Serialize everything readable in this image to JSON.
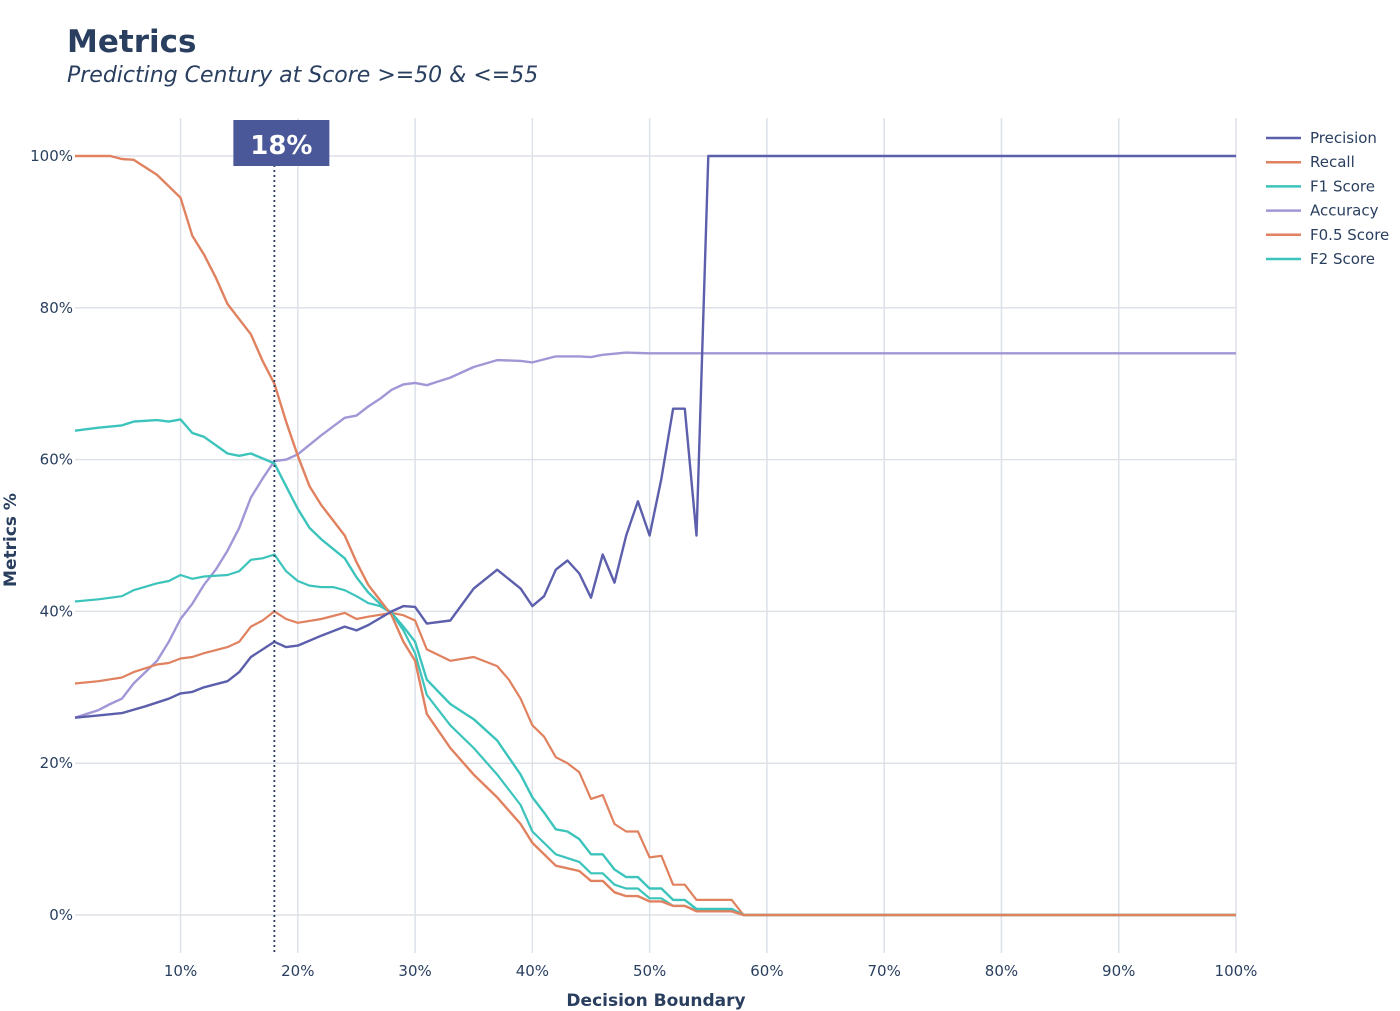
{
  "chart_data": {
    "type": "line",
    "title": "Metrics",
    "subtitle": "Predicting Century at Score >=50 & <=55",
    "xlabel": "Decision Boundary",
    "ylabel": "Metrics %",
    "xlim": [
      1,
      100
    ],
    "ylim": [
      -5,
      105
    ],
    "x_ticks": [
      10,
      20,
      30,
      40,
      50,
      60,
      70,
      80,
      90,
      100
    ],
    "x_tick_labels": [
      "10%",
      "20%",
      "30%",
      "40%",
      "50%",
      "60%",
      "70%",
      "80%",
      "90%",
      "100%"
    ],
    "y_ticks": [
      0,
      20,
      40,
      60,
      80,
      100
    ],
    "y_tick_labels": [
      "0%",
      "20%",
      "40%",
      "60%",
      "80%",
      "100%"
    ],
    "grid": true,
    "legend_position": "top-right",
    "annotation": {
      "x": 18,
      "label": "18%"
    },
    "colors": {
      "Precision": "#5c5fab",
      "Recall": "#e0815f",
      "F1 Score": "#3cc4bc",
      "Accuracy": "#a197d6",
      "F0.5 Score": "#e0815f",
      "F2 Score": "#3cc4bc",
      "annotation_bg": "#4a5899",
      "annotation_line": "#2a3f5f",
      "grid": "#dde1e8"
    },
    "series": [
      {
        "name": "Precision",
        "points": [
          [
            1,
            26
          ],
          [
            3,
            26.3
          ],
          [
            5,
            26.6
          ],
          [
            7,
            27.5
          ],
          [
            9,
            28.5
          ],
          [
            10,
            29.2
          ],
          [
            11,
            29.4
          ],
          [
            12,
            30
          ],
          [
            14,
            30.8
          ],
          [
            15,
            32
          ],
          [
            16,
            34
          ],
          [
            18,
            36
          ],
          [
            19,
            35.3
          ],
          [
            20,
            35.5
          ],
          [
            22,
            36.8
          ],
          [
            24,
            38
          ],
          [
            25,
            37.5
          ],
          [
            26,
            38.2
          ],
          [
            28,
            40
          ],
          [
            29,
            40.7
          ],
          [
            30,
            40.6
          ],
          [
            31,
            38.4
          ],
          [
            33,
            38.8
          ],
          [
            35,
            43
          ],
          [
            37,
            45.5
          ],
          [
            39,
            43
          ],
          [
            40,
            40.7
          ],
          [
            41,
            42
          ],
          [
            42,
            45.5
          ],
          [
            43,
            46.7
          ],
          [
            44,
            45
          ],
          [
            45,
            41.8
          ],
          [
            46,
            47.5
          ],
          [
            47,
            43.8
          ],
          [
            48,
            50
          ],
          [
            49,
            54.5
          ],
          [
            50,
            50
          ],
          [
            51,
            57.5
          ],
          [
            52,
            66.7
          ],
          [
            53,
            66.7
          ],
          [
            54,
            50
          ],
          [
            55,
            100
          ],
          [
            100,
            100
          ]
        ]
      },
      {
        "name": "Recall",
        "points": [
          [
            1,
            100
          ],
          [
            4,
            100
          ],
          [
            5,
            99.6
          ],
          [
            6,
            99.5
          ],
          [
            8,
            97.5
          ],
          [
            9,
            96
          ],
          [
            10,
            94.5
          ],
          [
            11,
            89.5
          ],
          [
            12,
            87
          ],
          [
            13,
            84
          ],
          [
            14,
            80.5
          ],
          [
            16,
            76.5
          ],
          [
            17,
            73
          ],
          [
            18,
            70
          ],
          [
            19,
            65
          ],
          [
            20,
            60.5
          ],
          [
            21,
            56.5
          ],
          [
            22,
            54
          ],
          [
            24,
            50
          ],
          [
            25,
            46.5
          ],
          [
            26,
            43.5
          ],
          [
            27,
            41.5
          ],
          [
            28,
            39.5
          ],
          [
            29,
            36
          ],
          [
            30,
            33.5
          ],
          [
            31,
            26.5
          ],
          [
            33,
            22
          ],
          [
            35,
            18.5
          ],
          [
            37,
            15.5
          ],
          [
            39,
            12
          ],
          [
            40,
            9.5
          ],
          [
            42,
            6.5
          ],
          [
            44,
            5.8
          ],
          [
            45,
            4.5
          ],
          [
            46,
            4.5
          ],
          [
            47,
            3
          ],
          [
            48,
            2.5
          ],
          [
            49,
            2.5
          ],
          [
            50,
            1.8
          ],
          [
            51,
            1.8
          ],
          [
            52,
            1.2
          ],
          [
            53,
            1.2
          ],
          [
            54,
            0.5
          ],
          [
            57,
            0.5
          ],
          [
            58,
            0
          ],
          [
            100,
            0
          ]
        ]
      },
      {
        "name": "F1 Score",
        "points": [
          [
            1,
            63.8
          ],
          [
            3,
            64.2
          ],
          [
            5,
            64.5
          ],
          [
            6,
            65
          ],
          [
            8,
            65.2
          ],
          [
            9,
            65
          ],
          [
            10,
            65.3
          ],
          [
            11,
            63.5
          ],
          [
            12,
            63
          ],
          [
            14,
            60.8
          ],
          [
            15,
            60.5
          ],
          [
            16,
            60.8
          ],
          [
            18,
            59.5
          ],
          [
            19,
            56.5
          ],
          [
            20,
            53.5
          ],
          [
            21,
            51
          ],
          [
            22,
            49.5
          ],
          [
            24,
            47
          ],
          [
            25,
            44.5
          ],
          [
            26,
            42.5
          ],
          [
            27,
            41
          ],
          [
            28,
            39.8
          ],
          [
            29,
            38
          ],
          [
            30,
            36
          ],
          [
            31,
            31
          ],
          [
            33,
            27.8
          ],
          [
            35,
            25.8
          ],
          [
            37,
            23
          ],
          [
            39,
            18.5
          ],
          [
            40,
            15.5
          ],
          [
            41,
            13.5
          ],
          [
            42,
            11.3
          ],
          [
            43,
            11
          ],
          [
            44,
            10
          ],
          [
            45,
            8
          ],
          [
            46,
            8
          ],
          [
            47,
            6
          ],
          [
            48,
            5
          ],
          [
            49,
            5
          ],
          [
            50,
            3.5
          ],
          [
            51,
            3.5
          ],
          [
            52,
            2
          ],
          [
            53,
            2
          ],
          [
            54,
            0.8
          ],
          [
            57,
            0.8
          ],
          [
            58,
            0
          ],
          [
            100,
            0
          ]
        ]
      },
      {
        "name": "Accuracy",
        "points": [
          [
            1,
            26
          ],
          [
            3,
            27
          ],
          [
            4,
            27.8
          ],
          [
            5,
            28.5
          ],
          [
            6,
            30.5
          ],
          [
            8,
            33.5
          ],
          [
            9,
            36
          ],
          [
            10,
            39
          ],
          [
            11,
            41
          ],
          [
            12,
            43.5
          ],
          [
            13,
            45.5
          ],
          [
            14,
            48
          ],
          [
            15,
            51
          ],
          [
            16,
            55
          ],
          [
            17,
            57.5
          ],
          [
            18,
            59.8
          ],
          [
            19,
            60
          ],
          [
            20,
            60.7
          ],
          [
            22,
            63.2
          ],
          [
            24,
            65.5
          ],
          [
            25,
            65.8
          ],
          [
            26,
            67
          ],
          [
            27,
            68
          ],
          [
            28,
            69.2
          ],
          [
            29,
            69.9
          ],
          [
            30,
            70.1
          ],
          [
            31,
            69.8
          ],
          [
            32,
            70.3
          ],
          [
            33,
            70.8
          ],
          [
            35,
            72.2
          ],
          [
            37,
            73.1
          ],
          [
            39,
            73
          ],
          [
            40,
            72.8
          ],
          [
            42,
            73.6
          ],
          [
            44,
            73.6
          ],
          [
            45,
            73.5
          ],
          [
            46,
            73.8
          ],
          [
            48,
            74.1
          ],
          [
            50,
            74
          ],
          [
            55,
            74
          ],
          [
            100,
            74
          ]
        ]
      },
      {
        "name": "F0.5 Score",
        "points": [
          [
            1,
            30.5
          ],
          [
            3,
            30.8
          ],
          [
            5,
            31.3
          ],
          [
            6,
            32
          ],
          [
            8,
            33
          ],
          [
            9,
            33.2
          ],
          [
            10,
            33.8
          ],
          [
            11,
            34
          ],
          [
            12,
            34.5
          ],
          [
            14,
            35.3
          ],
          [
            15,
            36
          ],
          [
            16,
            38
          ],
          [
            17,
            38.8
          ],
          [
            18,
            40
          ],
          [
            19,
            39
          ],
          [
            20,
            38.5
          ],
          [
            22,
            39
          ],
          [
            24,
            39.8
          ],
          [
            25,
            39
          ],
          [
            26,
            39.3
          ],
          [
            28,
            39.8
          ],
          [
            29,
            39.5
          ],
          [
            30,
            38.8
          ],
          [
            31,
            35
          ],
          [
            33,
            33.5
          ],
          [
            35,
            34
          ],
          [
            37,
            32.8
          ],
          [
            38,
            31
          ],
          [
            39,
            28.5
          ],
          [
            40,
            25
          ],
          [
            41,
            23.5
          ],
          [
            42,
            20.8
          ],
          [
            43,
            20
          ],
          [
            44,
            18.8
          ],
          [
            45,
            15.3
          ],
          [
            46,
            15.8
          ],
          [
            47,
            12
          ],
          [
            48,
            11
          ],
          [
            49,
            11
          ],
          [
            50,
            7.6
          ],
          [
            51,
            7.8
          ],
          [
            52,
            4
          ],
          [
            53,
            4
          ],
          [
            54,
            2
          ],
          [
            57,
            2
          ],
          [
            58,
            0
          ],
          [
            100,
            0
          ]
        ]
      },
      {
        "name": "F2 Score",
        "points": [
          [
            1,
            41.3
          ],
          [
            3,
            41.6
          ],
          [
            5,
            42
          ],
          [
            6,
            42.8
          ],
          [
            8,
            43.7
          ],
          [
            9,
            44
          ],
          [
            10,
            44.8
          ],
          [
            11,
            44.3
          ],
          [
            12,
            44.6
          ],
          [
            14,
            44.8
          ],
          [
            15,
            45.3
          ],
          [
            16,
            46.8
          ],
          [
            17,
            47
          ],
          [
            18,
            47.5
          ],
          [
            19,
            45.3
          ],
          [
            20,
            44
          ],
          [
            21,
            43.4
          ],
          [
            22,
            43.2
          ],
          [
            23,
            43.2
          ],
          [
            24,
            42.8
          ],
          [
            25,
            42
          ],
          [
            26,
            41.1
          ],
          [
            27,
            40.7
          ],
          [
            28,
            39.8
          ],
          [
            29,
            37.5
          ],
          [
            30,
            34.5
          ],
          [
            31,
            29
          ],
          [
            33,
            25
          ],
          [
            35,
            22
          ],
          [
            37,
            18.5
          ],
          [
            39,
            14.5
          ],
          [
            40,
            11
          ],
          [
            42,
            8
          ],
          [
            44,
            7
          ],
          [
            45,
            5.5
          ],
          [
            46,
            5.5
          ],
          [
            47,
            4
          ],
          [
            48,
            3.5
          ],
          [
            49,
            3.5
          ],
          [
            50,
            2.2
          ],
          [
            51,
            2.2
          ],
          [
            52,
            1.2
          ],
          [
            53,
            1.2
          ],
          [
            54,
            0.6
          ],
          [
            57,
            0.6
          ],
          [
            58,
            0
          ],
          [
            100,
            0
          ]
        ]
      }
    ]
  }
}
